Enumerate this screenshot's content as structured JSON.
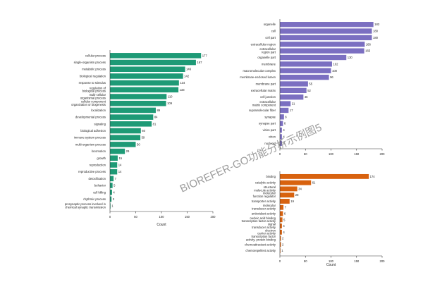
{
  "watermark": "BIOREFER-GO功能分析示例图5",
  "chart_data": [
    {
      "type": "bar",
      "orientation": "horizontal",
      "color": "#1e9a76",
      "xlabel": "Count",
      "ylabel": "",
      "xlim": [
        0,
        200
      ],
      "xticks": [
        0,
        50,
        100,
        150,
        200
      ],
      "categories": [
        "cellular process",
        "single-organism process",
        "metabolic process",
        "biological regulation",
        "response to stimulus",
        "regulation of biological process",
        "multi-cellular organismal process",
        "cellular component organization or biogenesis",
        "localization",
        "developmental process",
        "signaling",
        "biological adhesion",
        "immune system process",
        "multi-organism process",
        "locomotion",
        "growth",
        "reproduction",
        "reproductive process",
        "detoxification",
        "behavior",
        "cell killing",
        "rhythmic process",
        "presynaptic process involved in chemical synaptic transmission"
      ],
      "values": [
        177,
        167,
        146,
        142,
        134,
        133,
        110,
        109,
        89,
        84,
        81,
        60,
        59,
        50,
        29,
        15,
        14,
        14,
        7,
        5,
        4,
        3,
        1
      ]
    },
    {
      "type": "bar",
      "orientation": "horizontal",
      "color": "#7b6fc1",
      "xlabel": "",
      "ylabel": "",
      "xlim": [
        0,
        200
      ],
      "xticks": [
        0,
        50,
        100,
        150,
        200
      ],
      "categories": [
        "organelle",
        "cell",
        "cell part",
        "extracellular region",
        "extracellular region part",
        "organelle part",
        "membrane",
        "macromolecular complex",
        "membrane-enclosed lumen",
        "membrane part",
        "extracellular matrix",
        "cell junction",
        "extracellular matrix component",
        "supramolecular fiber",
        "synapse",
        "synapse part",
        "virion part",
        "virion",
        "nucleoid"
      ],
      "values": [
        183,
        180,
        180,
        166,
        165,
        130,
        102,
        100,
        96,
        55,
        52,
        46,
        21,
        17,
        8,
        6,
        4,
        4,
        4
      ]
    },
    {
      "type": "bar",
      "orientation": "horizontal",
      "color": "#d8620f",
      "xlabel": "Count",
      "ylabel": "",
      "xlim": [
        0,
        200
      ],
      "xticks": [
        0,
        50,
        100,
        150,
        200
      ],
      "categories": [
        "binding",
        "catalytic activity",
        "structural molecule activity",
        "molecular function regulator",
        "transporter activity",
        "molecular transducer activity",
        "antioxidant activity",
        "nucleic acid binding transcription factor activity",
        "signal transducer activity",
        "electron carrier activity",
        "transcription factor activity, protein binding",
        "chemoattractant activity",
        "chemorepellent activity"
      ],
      "values": [
        174,
        61,
        34,
        28,
        19,
        7,
        6,
        5,
        4,
        4,
        2,
        2,
        1
      ]
    }
  ]
}
